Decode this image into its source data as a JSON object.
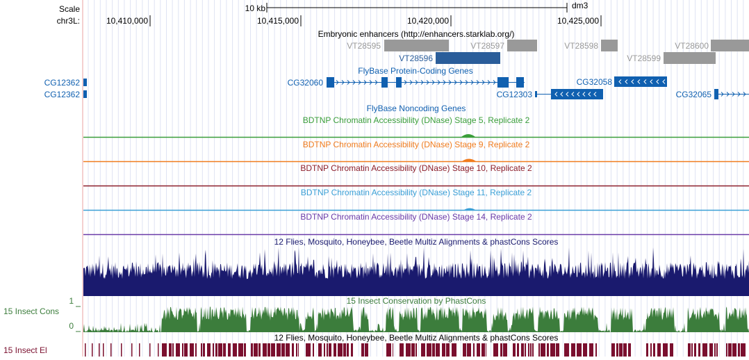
{
  "ruler": {
    "scale_label": "Scale",
    "scale_bar_label": "10 kb",
    "assembly": "dm3",
    "chrom_label": "chr3L:",
    "ticks": [
      "10,410,000",
      "10,415,000",
      "10,420,000",
      "10,425,000"
    ]
  },
  "enhancers": {
    "title": "Embryonic enhancers (http://enhancers.starklab.org/)",
    "items": [
      "VT28595",
      "VT28597",
      "VT28596",
      "VT28598",
      "VT28599",
      "VT28600"
    ]
  },
  "genes": {
    "title": "FlyBase Protein-Coding Genes",
    "left_items": [
      "CG12362",
      "CG12362"
    ],
    "items": [
      "CG32060",
      "CG12303",
      "CG32058",
      "CG32065"
    ]
  },
  "noncoding": {
    "title": "FlyBase Noncoding Genes"
  },
  "dnase_tracks": [
    {
      "title": "BDTNP Chromatin Accessibility (DNase) Stage 5, Replicate 2",
      "color": "#3a9e3a"
    },
    {
      "title": "BDTNP Chromatin Accessibility (DNase) Stage 9, Replicate 2",
      "color": "#f07c1e"
    },
    {
      "title": "BDTNP Chromatin Accessibility (DNase) Stage 10, Replicate 2",
      "color": "#8c1e2a"
    },
    {
      "title": "BDTNP Chromatin Accessibility (DNase) Stage 11, Replicate 2",
      "color": "#3a9fd6"
    },
    {
      "title": "BDTNP Chromatin Accessibility (DNase) Stage 14, Replicate 2",
      "color": "#6a3aa8"
    }
  ],
  "multiz": {
    "title": "12 Flies, Mosquito, Honeybee, Beetle Multiz Alignments & phastCons Scores",
    "color": "#1a1a6e"
  },
  "phastcons": {
    "title": "15 Insect Conservation by PhastCons",
    "side_label": "15 Insect Cons",
    "axis_max": "1",
    "axis_min": "0",
    "color": "#3c7d3c"
  },
  "elements": {
    "title": "12 Flies, Mosquito, Honeybee, Beetle Multiz Alignments & phastCons Scores",
    "side_label": "15 Insect El",
    "color": "#7a0f2e"
  },
  "colors": {
    "gene_blue": "#1060b0",
    "enhancer_gray": "#999999",
    "enhancer_blue": "#2a5d9a"
  }
}
